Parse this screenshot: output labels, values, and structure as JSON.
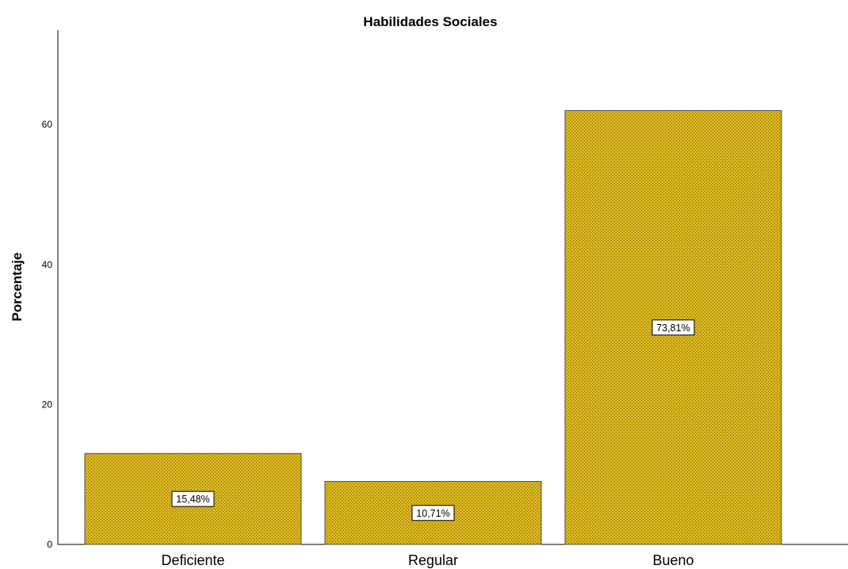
{
  "chart_data": {
    "type": "bar",
    "title": "Habilidades Sociales",
    "xlabel": "",
    "ylabel": "Porcentaje",
    "categories": [
      "Deficiente",
      "Regular",
      "Bueno"
    ],
    "values": [
      13,
      9,
      62
    ],
    "data_labels": [
      "15,48%",
      "10,71%",
      "73,81%"
    ],
    "ylim": [
      0,
      73.5
    ],
    "yticks": [
      0,
      20,
      40,
      60
    ],
    "grid": false,
    "legend": "none",
    "colors": {
      "bar_fill": "#D9B51E",
      "bar_pattern": "#7A5F08",
      "bar_edge": "#4D4D4D",
      "axis": "#000000",
      "label_box": "#FFFFFF",
      "label_border": "#000000",
      "text": "#000000"
    }
  }
}
